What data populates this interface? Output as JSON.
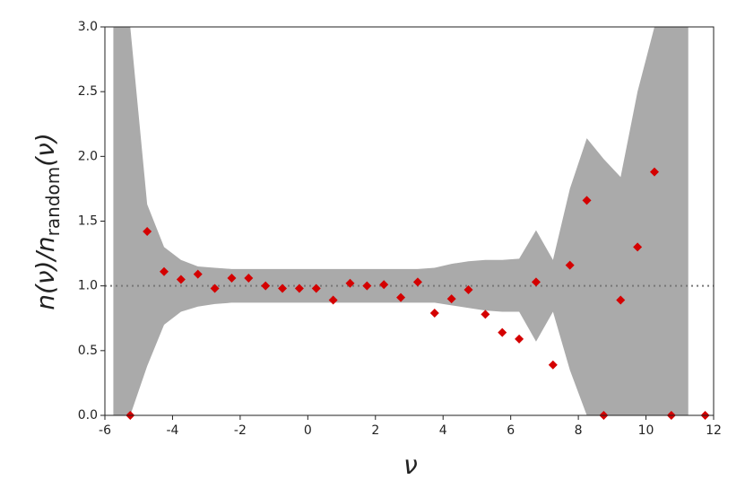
{
  "chart_data": {
    "type": "scatter",
    "x_label": "ν",
    "y_label": {
      "main": "n(ν)/n",
      "sub": "random",
      "end": "(ν)"
    },
    "x": [
      -5.25,
      -4.75,
      -4.25,
      -3.75,
      -3.25,
      -2.75,
      -2.25,
      -1.75,
      -1.25,
      -0.75,
      -0.25,
      0.25,
      0.75,
      1.25,
      1.75,
      2.25,
      2.75,
      3.25,
      3.75,
      4.25,
      4.75,
      5.25,
      5.75,
      6.25,
      6.75,
      7.25,
      7.75,
      8.25,
      8.75,
      9.25,
      9.75,
      10.25,
      10.75,
      11.75
    ],
    "values": [
      0,
      1.42,
      1.11,
      1.05,
      1.09,
      0.98,
      1.06,
      1.06,
      1.0,
      0.98,
      0.98,
      0.98,
      0.89,
      1.02,
      1.0,
      1.01,
      0.91,
      1.03,
      0.79,
      0.9,
      0.97,
      0.78,
      0.64,
      0.59,
      1.03,
      0.39,
      1.16,
      1.66,
      0,
      0.89,
      1.3,
      1.88,
      0,
      0
    ],
    "color": "#d40000",
    "band": {
      "color": "#aaaaaa",
      "x": [
        -5.75,
        -5.25,
        -4.75,
        -4.25,
        -3.75,
        -3.25,
        -2.75,
        -2.25,
        -1.75,
        -1.25,
        -0.75,
        -0.25,
        0.25,
        0.75,
        1.25,
        1.75,
        2.25,
        2.75,
        3.25,
        3.75,
        4.25,
        4.75,
        5.25,
        5.75,
        6.25,
        6.75,
        7.25,
        7.75,
        8.25,
        8.75,
        9.25,
        9.75,
        10.25,
        10.75,
        11.25
      ],
      "upper": [
        3.0,
        3.0,
        1.63,
        1.3,
        1.2,
        1.15,
        1.14,
        1.13,
        1.13,
        1.13,
        1.13,
        1.13,
        1.13,
        1.13,
        1.13,
        1.13,
        1.13,
        1.13,
        1.13,
        1.14,
        1.17,
        1.19,
        1.2,
        1.2,
        1.21,
        1.43,
        1.2,
        1.75,
        2.14,
        1.98,
        1.84,
        2.5,
        3.0,
        3.0,
        3.0
      ],
      "lower": [
        0,
        0,
        0.38,
        0.7,
        0.8,
        0.84,
        0.86,
        0.87,
        0.87,
        0.87,
        0.87,
        0.87,
        0.87,
        0.87,
        0.87,
        0.87,
        0.87,
        0.87,
        0.87,
        0.87,
        0.85,
        0.83,
        0.81,
        0.8,
        0.8,
        0.57,
        0.8,
        0.35,
        0,
        0,
        0,
        0,
        0,
        0,
        0
      ]
    },
    "hline": 1.0,
    "xlim": [
      -6,
      12
    ],
    "xticks": [
      -6,
      -4,
      -2,
      0,
      2,
      4,
      6,
      8,
      10,
      12
    ],
    "ylim": [
      0,
      3.0
    ],
    "yticks": [
      {
        "value": 0,
        "label": "0.0"
      },
      {
        "value": 0.5,
        "label": "0.5"
      },
      {
        "value": 1.0,
        "label": "1.0"
      },
      {
        "value": 1.5,
        "label": "1.5"
      },
      {
        "value": 2.0,
        "label": "2.0"
      },
      {
        "value": 2.5,
        "label": "2.5"
      },
      {
        "value": 3.0,
        "label": "3.0"
      }
    ]
  }
}
